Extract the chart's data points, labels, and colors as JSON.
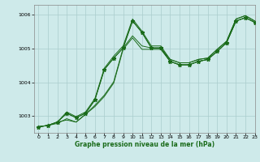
{
  "title": "Graphe pression niveau de la mer (hPa)",
  "background_color": "#ceeaea",
  "grid_color": "#aacccc",
  "line_color": "#1a6b1a",
  "xlim": [
    -0.5,
    23
  ],
  "ylim": [
    1002.5,
    1006.3
  ],
  "yticks": [
    1003,
    1004,
    1005,
    1006
  ],
  "xticks": [
    0,
    1,
    2,
    3,
    4,
    5,
    6,
    7,
    8,
    9,
    10,
    11,
    12,
    13,
    14,
    15,
    16,
    17,
    18,
    19,
    20,
    21,
    22,
    23
  ],
  "series": {
    "line_base": [
      1002.68,
      1002.72,
      1002.82,
      1002.88,
      1002.82,
      1003.05,
      1003.28,
      1003.58,
      1003.98,
      1004.98,
      1005.32,
      1004.98,
      1004.98,
      1004.98,
      1004.62,
      1004.52,
      1004.52,
      1004.62,
      1004.68,
      1004.92,
      1005.18,
      1005.82,
      1005.92,
      1005.78
    ],
    "line_spike": [
      1002.68,
      1002.72,
      1002.82,
      1003.08,
      1002.95,
      1003.08,
      1003.48,
      1004.38,
      1004.72,
      1005.02,
      1005.82,
      1005.48,
      1005.02,
      1005.02,
      1004.62,
      1004.52,
      1004.52,
      1004.62,
      1004.68,
      1004.92,
      1005.18,
      1005.82,
      1005.92,
      1005.78
    ],
    "line_mid1": [
      1002.68,
      1002.72,
      1002.78,
      1002.92,
      1002.82,
      1003.05,
      1003.32,
      1003.62,
      1004.02,
      1005.02,
      1005.38,
      1005.08,
      1005.02,
      1005.02,
      1004.68,
      1004.58,
      1004.58,
      1004.68,
      1004.72,
      1004.98,
      1005.22,
      1005.88,
      1005.98,
      1005.82
    ],
    "line_mid2": [
      1002.68,
      1002.72,
      1002.82,
      1003.12,
      1002.98,
      1003.12,
      1003.52,
      1004.42,
      1004.78,
      1005.08,
      1005.88,
      1005.52,
      1005.08,
      1005.08,
      1004.68,
      1004.58,
      1004.58,
      1004.68,
      1004.72,
      1004.98,
      1005.22,
      1005.88,
      1005.98,
      1005.82
    ]
  },
  "marked_line": [
    1002.68,
    1002.72,
    1002.82,
    1003.08,
    1002.95,
    1003.08,
    1003.48,
    1004.38,
    1004.72,
    1005.02,
    1005.82,
    1005.48,
    1005.02,
    1005.02,
    1004.62,
    1004.52,
    1004.52,
    1004.62,
    1004.68,
    1004.92,
    1005.18,
    1005.82,
    1005.92,
    1005.78
  ]
}
